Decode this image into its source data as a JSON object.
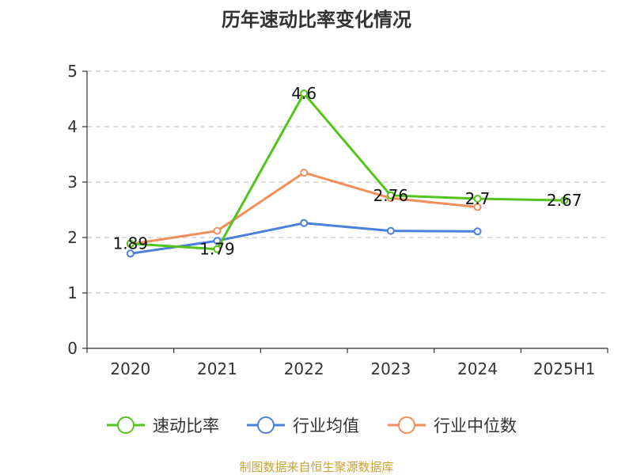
{
  "chart_data": {
    "type": "line",
    "title": "历年速动比率变化情况",
    "categories": [
      "2020",
      "2021",
      "2022",
      "2023",
      "2024",
      "2025H1"
    ],
    "ylim": [
      0,
      5
    ],
    "yticks": [
      "0",
      "1",
      "2",
      "3",
      "4",
      "5"
    ],
    "grid": true,
    "legend_position": "bottom",
    "series": [
      {
        "name": "速动比率",
        "color": "#52c41a",
        "values": [
          1.89,
          1.79,
          4.6,
          2.76,
          2.7,
          2.67
        ],
        "labels": [
          "1.89",
          "1.79",
          "4.6",
          "2.76",
          "2.7",
          "2.67"
        ]
      },
      {
        "name": "行业均值",
        "color": "#4a7fdb",
        "values": [
          1.71,
          1.94,
          2.26,
          2.12,
          2.11,
          null
        ]
      },
      {
        "name": "行业中位数",
        "color": "#f28e5c",
        "values": [
          1.88,
          2.12,
          3.17,
          2.71,
          2.55,
          null
        ]
      }
    ],
    "source": "制图数据来自恒生聚源数据库"
  }
}
